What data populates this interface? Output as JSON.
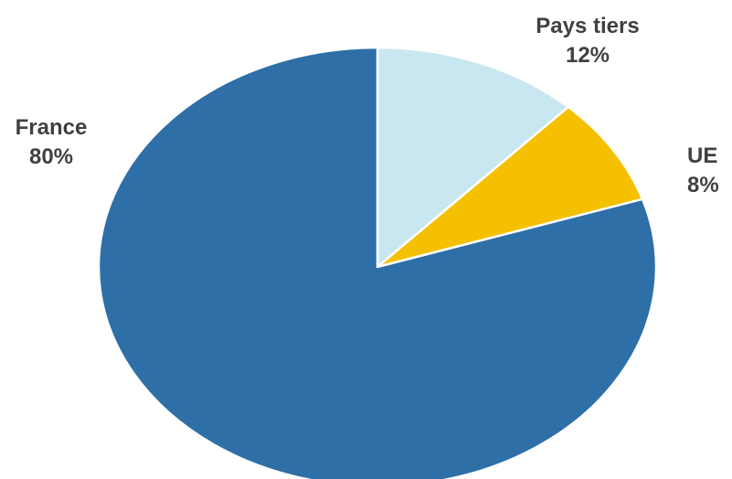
{
  "chart_data": {
    "type": "pie",
    "title": "",
    "slices": [
      {
        "label": "Pays tiers",
        "value": 12,
        "value_label": "12%",
        "color": "#c9e7f0"
      },
      {
        "label": "UE",
        "value": 8,
        "value_label": "8%",
        "color": "#f5c000"
      },
      {
        "label": "France",
        "value": 80,
        "value_label": "80%",
        "color": "#2e6fa7"
      }
    ],
    "start_angle": "12 o'clock",
    "direction": "clockwise",
    "legend": "none",
    "label_color": "#404040",
    "border_color": "#ffffff"
  }
}
